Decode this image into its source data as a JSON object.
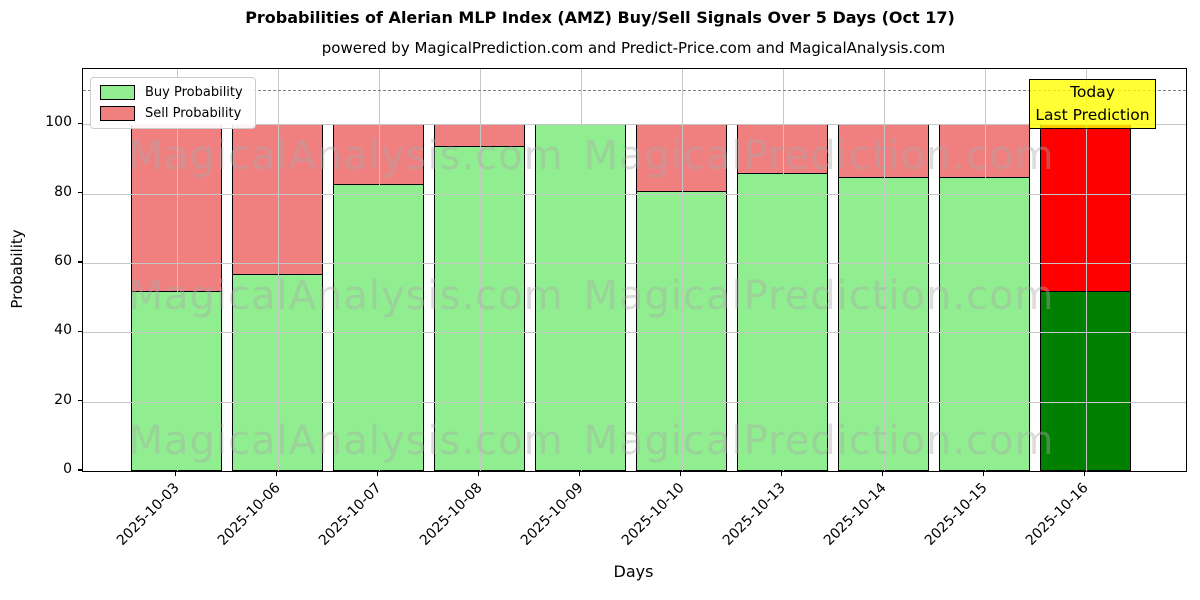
{
  "figure": {
    "title": "Probabilities of Alerian MLP Index (AMZ) Buy/Sell Signals Over 5 Days (Oct 17)",
    "subtitle": "powered by MagicalPrediction.com and Predict-Price.com and MagicalAnalysis.com"
  },
  "chart_data": {
    "type": "bar",
    "stacked": true,
    "title": "Probabilities of Alerian MLP Index (AMZ) Buy/Sell Signals Over 5 Days (Oct 17)",
    "subtitle": "powered by MagicalPrediction.com and Predict-Price.com and MagicalAnalysis.com",
    "xlabel": "Days",
    "ylabel": "Probability",
    "categories": [
      "2025-10-03",
      "2025-10-06",
      "2025-10-07",
      "2025-10-08",
      "2025-10-09",
      "2025-10-10",
      "2025-10-13",
      "2025-10-14",
      "2025-10-15",
      "2025-10-16"
    ],
    "series": [
      {
        "name": "Buy Probability",
        "color": "#90ee90",
        "today_color": "#008000",
        "values": [
          52,
          57,
          83,
          94,
          100,
          81,
          86,
          85,
          85,
          52
        ]
      },
      {
        "name": "Sell Probability",
        "color": "#f08080",
        "today_color": "#ff0000",
        "values": [
          48,
          43,
          17,
          6,
          0,
          19,
          14,
          15,
          15,
          48
        ]
      }
    ],
    "today_index": 9,
    "yticks": [
      0,
      20,
      40,
      60,
      80,
      100
    ],
    "ylim": [
      0,
      116
    ],
    "dashed_line_y": 110,
    "grid": true,
    "legend_position": "upper left",
    "bar_edge_color": "#000000",
    "dashed_line_color": "#7f7f7f"
  },
  "annotation": {
    "line1": "Today",
    "line2": "Last Prediction",
    "bg_color": "#ffff00"
  },
  "watermarks": {
    "left_text": "MagicalAnalysis.com",
    "right_text": "MagicalPrediction.com"
  }
}
